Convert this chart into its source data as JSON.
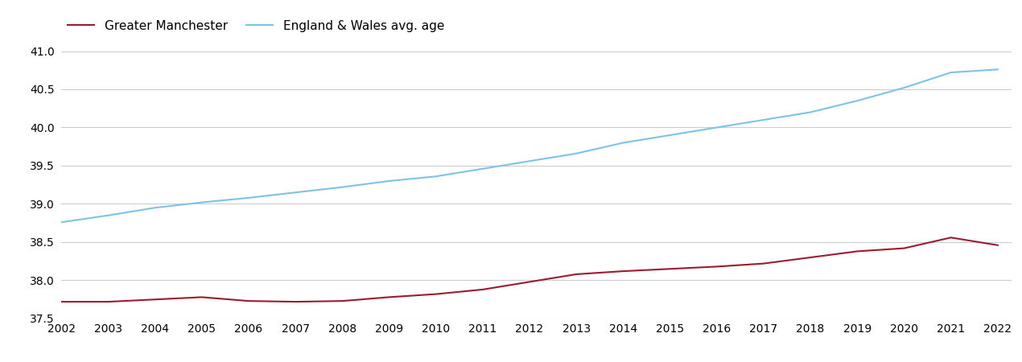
{
  "years": [
    2002,
    2003,
    2004,
    2005,
    2006,
    2007,
    2008,
    2009,
    2010,
    2011,
    2012,
    2013,
    2014,
    2015,
    2016,
    2017,
    2018,
    2019,
    2020,
    2021,
    2022
  ],
  "greater_manchester": [
    37.72,
    37.72,
    37.75,
    37.78,
    37.73,
    37.72,
    37.73,
    37.78,
    37.82,
    37.88,
    37.98,
    38.08,
    38.12,
    38.15,
    38.18,
    38.22,
    38.3,
    38.38,
    38.42,
    38.56,
    38.46
  ],
  "england_wales": [
    38.76,
    38.85,
    38.95,
    39.02,
    39.08,
    39.15,
    39.22,
    39.3,
    39.36,
    39.46,
    39.56,
    39.66,
    39.8,
    39.9,
    40.0,
    40.1,
    40.2,
    40.35,
    40.52,
    40.72,
    40.76
  ],
  "gm_color": "#9B1C2E",
  "ew_color": "#7DC3E8",
  "legend_labels": [
    "Greater Manchester",
    "England & Wales avg. age"
  ],
  "ylim": [
    37.5,
    41.1
  ],
  "yticks": [
    37.5,
    38.0,
    38.5,
    39.0,
    39.5,
    40.0,
    40.5,
    41.0
  ],
  "grid_color": "#cccccc",
  "background_color": "#ffffff",
  "line_width": 1.5,
  "font_size": 11,
  "tick_font_size": 10
}
